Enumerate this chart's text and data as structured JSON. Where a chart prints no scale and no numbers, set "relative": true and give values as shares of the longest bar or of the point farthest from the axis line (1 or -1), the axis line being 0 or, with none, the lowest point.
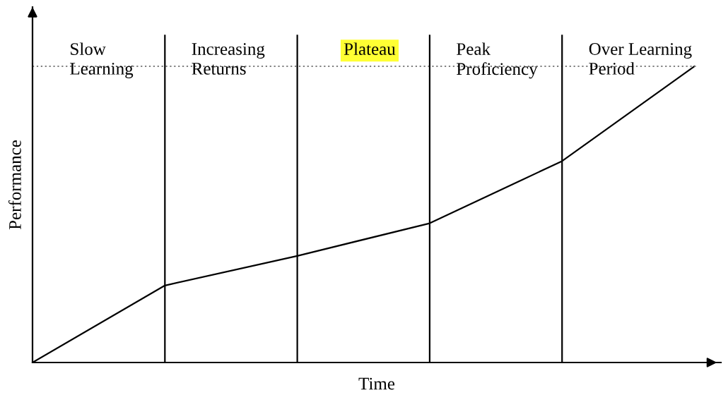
{
  "chart_data": {
    "type": "line",
    "relative": true,
    "xlabel": "Time",
    "ylabel": "Performance",
    "categories": [
      null,
      null,
      null,
      null,
      null,
      null
    ],
    "series": [
      {
        "color": "#000000",
        "values": [
          0,
          0.26,
          0.36,
          0.47,
          0.68,
          1.0
        ]
      }
    ],
    "ref_lines": [
      {
        "axis": "y",
        "value": 1.0,
        "color": "#808080",
        "line_style": "dotted"
      }
    ],
    "annotations": [
      "Slow\nLearning",
      "Increasing\nReturns",
      "Plateau",
      "Peak\nProficiency",
      "Over Learning\nPeriod"
    ],
    "grid": "x",
    "marker": "none",
    "line_style": "solid"
  }
}
